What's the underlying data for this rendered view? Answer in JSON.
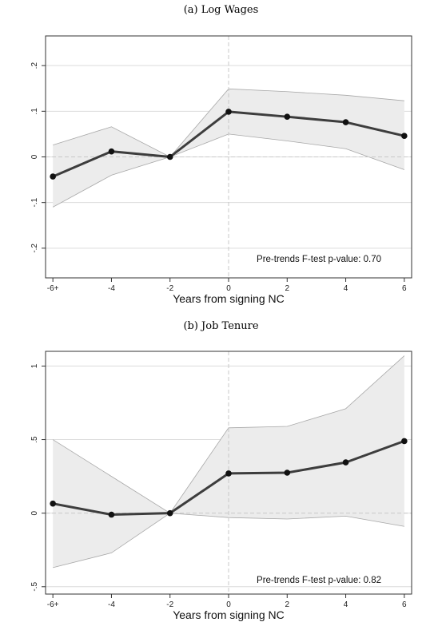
{
  "chart_data": [
    {
      "type": "line",
      "title": "(a) Log Wages",
      "xlabel": "Years from signing NC",
      "ylabel": "",
      "x": [
        -6,
        -4,
        -2,
        0,
        2,
        4,
        6
      ],
      "x_tick_labels": [
        "-6+",
        "-4",
        "-2",
        "0",
        "2",
        "4",
        "6"
      ],
      "y_ticks": [
        -0.2,
        -0.1,
        0,
        0.1,
        0.2
      ],
      "y_tick_labels": [
        "-.2",
        "-.1",
        "0",
        ".1",
        ".2"
      ],
      "ylim": [
        -0.265,
        0.265
      ],
      "xlim": [
        -6.25,
        6.25
      ],
      "series": [
        {
          "values": [
            -0.043,
            0.012,
            0.0,
            0.099,
            0.088,
            0.076,
            0.046
          ],
          "ci_lower": [
            -0.11,
            -0.04,
            0.0,
            0.05,
            0.035,
            0.018,
            -0.028
          ],
          "ci_upper": [
            0.026,
            0.066,
            0.0,
            0.149,
            0.143,
            0.135,
            0.123
          ]
        }
      ],
      "reference_lines": {
        "x": 0,
        "y": 0
      },
      "grid": true,
      "annotation": "Pre-trends F-test p-value: 0.70"
    },
    {
      "type": "line",
      "title": "(b) Job Tenure",
      "xlabel": "Years from signing NC",
      "ylabel": "",
      "x": [
        -6,
        -4,
        -2,
        0,
        2,
        4,
        6
      ],
      "x_tick_labels": [
        "-6+",
        "-4",
        "-2",
        "0",
        "2",
        "4",
        "6"
      ],
      "y_ticks": [
        -0.5,
        0,
        0.5,
        1
      ],
      "y_tick_labels": [
        "-.5",
        "0",
        ".5",
        "1"
      ],
      "ylim": [
        -0.55,
        1.1
      ],
      "xlim": [
        -6.25,
        6.25
      ],
      "series": [
        {
          "values": [
            0.065,
            -0.01,
            0.0,
            0.27,
            0.275,
            0.345,
            0.49
          ],
          "ci_lower": [
            -0.37,
            -0.27,
            0.0,
            -0.03,
            -0.04,
            -0.02,
            -0.09
          ],
          "ci_upper": [
            0.5,
            0.25,
            0.0,
            0.58,
            0.59,
            0.71,
            1.07
          ]
        }
      ],
      "reference_lines": {
        "x": 0,
        "y": 0
      },
      "grid": true,
      "annotation": "Pre-trends F-test p-value: 0.82"
    }
  ],
  "colors": {
    "line": "#3d3d3d",
    "marker": "#111111",
    "band_fill": "#ececec",
    "band_edge": "#a8a8a8",
    "grid": "#dcdcdc",
    "reference": "#c8c8c8"
  }
}
